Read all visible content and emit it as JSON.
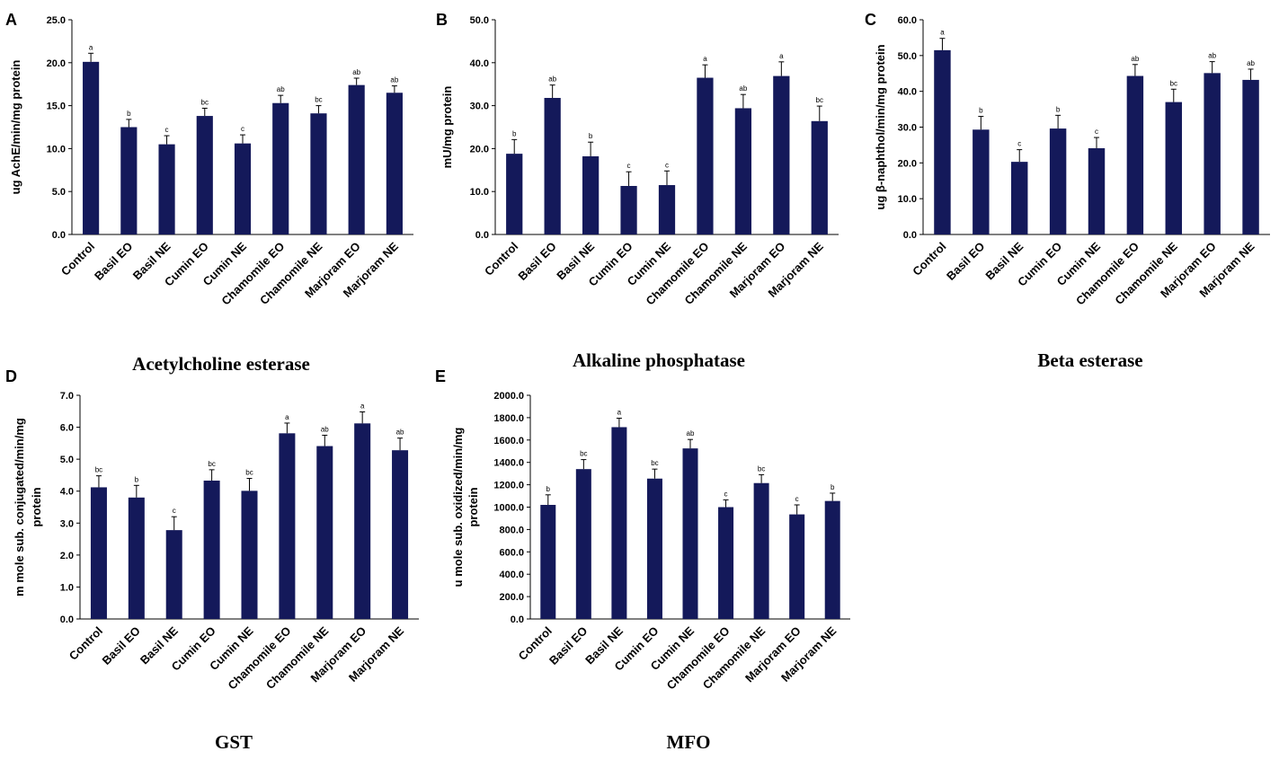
{
  "figure": {
    "bar_color": "#14195a"
  },
  "chart_data": [
    {
      "panel": "A",
      "type": "bar",
      "title": "Acetylcholine esterase",
      "ylabel": "ug AchE/min/mg protein",
      "ylim": [
        0,
        25
      ],
      "ytick_step": 5,
      "ytick_decimals": 1,
      "categories": [
        "Control",
        "Basil EO",
        "Basil NE",
        "Cumin EO",
        "Cumin NE",
        "Chamomile EO",
        "Chamomile NE",
        "Marjoram EO",
        "Marjoram NE"
      ],
      "values": [
        20.1,
        12.5,
        10.5,
        13.8,
        10.6,
        15.3,
        14.1,
        17.4,
        16.5
      ],
      "errors": [
        1.0,
        0.9,
        1.0,
        0.9,
        1.0,
        0.9,
        0.9,
        0.8,
        0.8
      ],
      "labels": [
        "a",
        "b",
        "c",
        "bc",
        "c",
        "ab",
        "bc",
        "ab",
        "ab"
      ]
    },
    {
      "panel": "B",
      "type": "bar",
      "title": "Alkaline phosphatase",
      "ylabel": "mU/mg protein",
      "ylim": [
        0,
        50
      ],
      "ytick_step": 10,
      "ytick_decimals": 1,
      "categories": [
        "Control",
        "Basil EO",
        "Basil NE",
        "Cumin EO",
        "Cumin NE",
        "Chamomile EO",
        "Chamomile NE",
        "Marjoram EO",
        "Marjoram NE"
      ],
      "values": [
        18.8,
        31.8,
        18.2,
        11.3,
        11.5,
        36.5,
        29.4,
        36.9,
        26.4
      ],
      "errors": [
        3.3,
        3.0,
        3.3,
        3.3,
        3.3,
        3.0,
        3.2,
        3.3,
        3.5
      ],
      "labels": [
        "b",
        "ab",
        "b",
        "c",
        "c",
        "a",
        "ab",
        "a",
        "bc"
      ]
    },
    {
      "panel": "C",
      "type": "bar",
      "title": "Beta esterase",
      "ylabel": "ug β-naphthol/min/mg protein",
      "ylim": [
        0,
        60
      ],
      "ytick_step": 10,
      "ytick_decimals": 1,
      "categories": [
        "Control",
        "Basil EO",
        "Basil NE",
        "Cumin EO",
        "Cumin NE",
        "Chamomile EO",
        "Chamomile NE",
        "Marjoram EO",
        "Marjoram NE"
      ],
      "values": [
        51.5,
        29.3,
        20.3,
        29.6,
        24.1,
        44.3,
        37.0,
        45.1,
        43.2
      ],
      "errors": [
        3.3,
        3.7,
        3.4,
        3.7,
        3.0,
        3.2,
        3.6,
        3.2,
        3.0
      ],
      "labels": [
        "a",
        "b",
        "c",
        "b",
        "c",
        "ab",
        "bc",
        "ab",
        "ab"
      ]
    },
    {
      "panel": "D",
      "type": "bar",
      "title": "GST",
      "ylabel_lines": [
        "m mole sub. conjugated/min/mg",
        "protein"
      ],
      "ylim": [
        0,
        7
      ],
      "ytick_step": 1,
      "ytick_decimals": 1,
      "categories": [
        "Control",
        "Basil EO",
        "Basil NE",
        "Cumin EO",
        "Cumin NE",
        "Chamomile EO",
        "Chamomile NE",
        "Marjoram EO",
        "Marjoram NE"
      ],
      "values": [
        4.12,
        3.8,
        2.78,
        4.33,
        4.01,
        5.81,
        5.41,
        6.12,
        5.28
      ],
      "errors": [
        0.36,
        0.38,
        0.42,
        0.34,
        0.39,
        0.32,
        0.34,
        0.36,
        0.38
      ],
      "labels": [
        "bc",
        "b",
        "c",
        "bc",
        "bc",
        "a",
        "ab",
        "a",
        "ab"
      ]
    },
    {
      "panel": "E",
      "type": "bar",
      "title": "MFO",
      "ylabel_lines": [
        "u mole sub. oxidized/min/mg",
        "protein"
      ],
      "ylim": [
        0,
        2000
      ],
      "ytick_step": 200,
      "ytick_decimals": 1,
      "categories": [
        "Control",
        "Basil EO",
        "Basil NE",
        "Cumin EO",
        "Cumin NE",
        "Chamomile EO",
        "Chamomile NE",
        "Marjoram EO",
        "Marjoram NE"
      ],
      "values": [
        1020,
        1340,
        1715,
        1255,
        1525,
        1000,
        1215,
        935,
        1055
      ],
      "errors": [
        90,
        85,
        80,
        85,
        80,
        65,
        75,
        85,
        70
      ],
      "labels": [
        "b",
        "bc",
        "a",
        "bc",
        "ab",
        "c",
        "bc",
        "c",
        "b"
      ]
    }
  ]
}
